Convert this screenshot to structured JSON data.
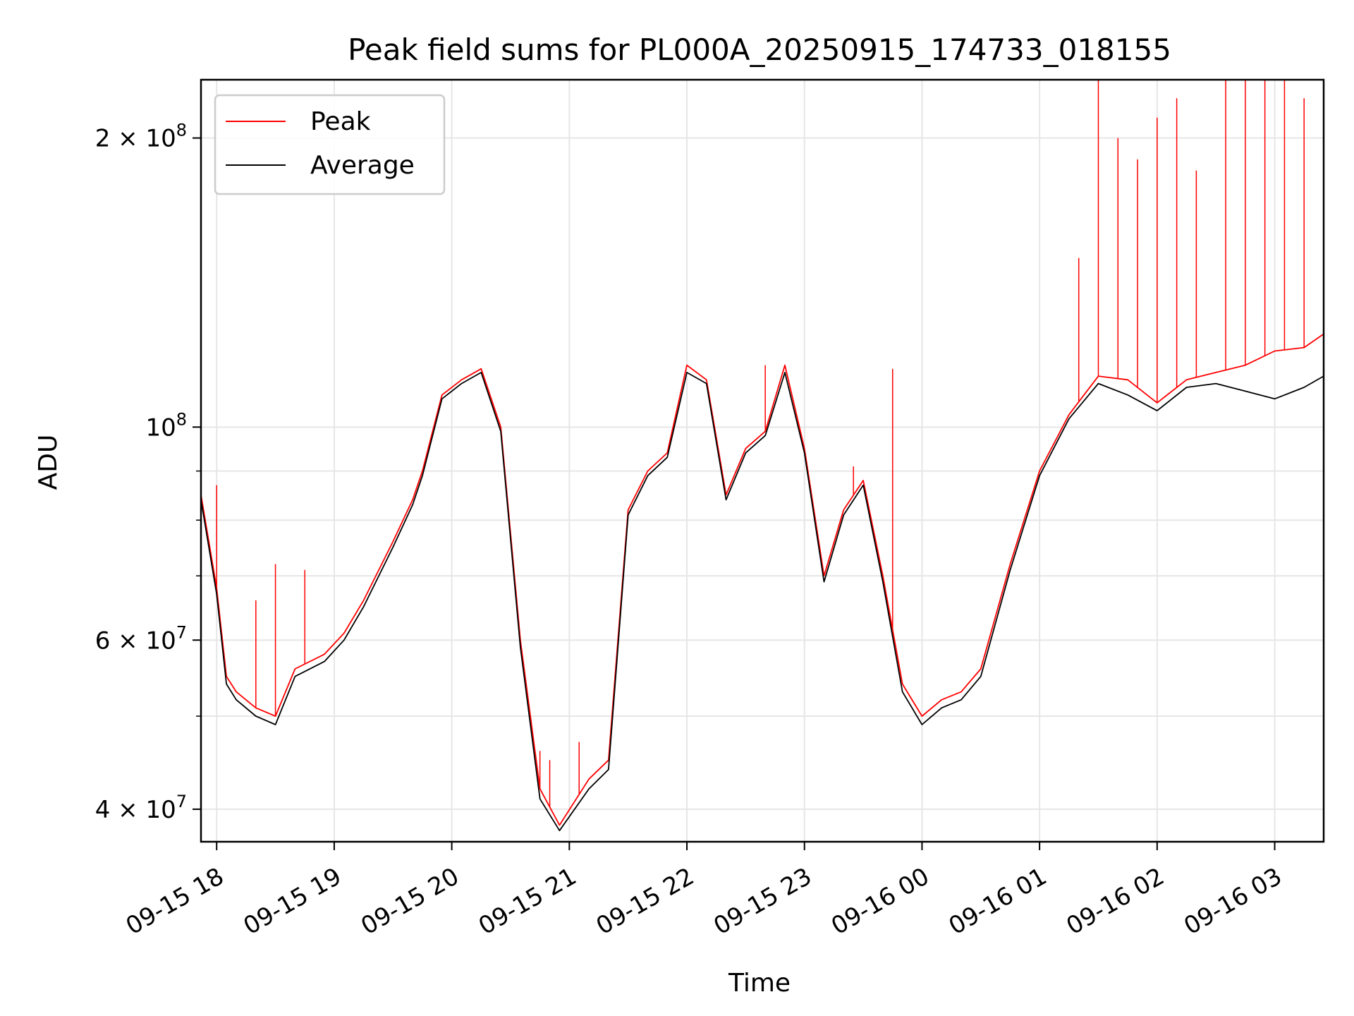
{
  "chart_data": {
    "type": "line",
    "title": "Peak field sums for PL000A_20250915_174733_018155",
    "xlabel": "Time",
    "ylabel": "ADU",
    "yscale": "log",
    "ylim": [
      37000000,
      230000000
    ],
    "xlim": [
      "2025-09-15 17:52",
      "2025-09-16 03:25"
    ],
    "x_ticks": [
      {
        "t": "2025-09-15 18:00",
        "label": "09-15 18"
      },
      {
        "t": "2025-09-15 19:00",
        "label": "09-15 19"
      },
      {
        "t": "2025-09-15 20:00",
        "label": "09-15 20"
      },
      {
        "t": "2025-09-15 21:00",
        "label": "09-15 21"
      },
      {
        "t": "2025-09-15 22:00",
        "label": "09-15 22"
      },
      {
        "t": "2025-09-15 23:00",
        "label": "09-15 23"
      },
      {
        "t": "2025-09-16 00:00",
        "label": "09-16 00"
      },
      {
        "t": "2025-09-16 01:00",
        "label": "09-16 01"
      },
      {
        "t": "2025-09-16 02:00",
        "label": "09-16 02"
      },
      {
        "t": "2025-09-16 03:00",
        "label": "09-16 03"
      }
    ],
    "y_major_ticks": [
      {
        "v": 40000000,
        "mant": "4",
        "exp": "7"
      },
      {
        "v": 60000000,
        "mant": "6",
        "exp": "7"
      },
      {
        "v": 100000000,
        "mant": "",
        "exp": "8"
      },
      {
        "v": 200000000,
        "mant": "2",
        "exp": "8"
      }
    ],
    "y_minor_ticks": [
      50000000,
      70000000,
      80000000,
      90000000
    ],
    "grid": true,
    "legend": {
      "placement": "upper-left"
    },
    "series": [
      {
        "name": "Peak",
        "color": "#ff0000",
        "x": [
          "2025-09-15 17:52",
          "2025-09-15 18:00",
          "2025-09-15 18:05",
          "2025-09-15 18:10",
          "2025-09-15 18:20",
          "2025-09-15 18:30",
          "2025-09-15 18:40",
          "2025-09-15 18:55",
          "2025-09-15 19:05",
          "2025-09-15 19:15",
          "2025-09-15 19:30",
          "2025-09-15 19:40",
          "2025-09-15 19:45",
          "2025-09-15 19:55",
          "2025-09-15 20:05",
          "2025-09-15 20:15",
          "2025-09-15 20:25",
          "2025-09-15 20:35",
          "2025-09-15 20:45",
          "2025-09-15 20:55",
          "2025-09-15 21:10",
          "2025-09-15 21:20",
          "2025-09-15 21:30",
          "2025-09-15 21:40",
          "2025-09-15 21:50",
          "2025-09-15 22:00",
          "2025-09-15 22:10",
          "2025-09-15 22:20",
          "2025-09-15 22:30",
          "2025-09-15 22:40",
          "2025-09-15 22:50",
          "2025-09-15 23:00",
          "2025-09-15 23:10",
          "2025-09-15 23:20",
          "2025-09-15 23:30",
          "2025-09-15 23:40",
          "2025-09-15 23:50",
          "2025-09-16 00:00",
          "2025-09-16 00:10",
          "2025-09-16 00:20",
          "2025-09-16 00:30",
          "2025-09-16 00:45",
          "2025-09-16 01:00",
          "2025-09-16 01:15",
          "2025-09-16 01:30",
          "2025-09-16 01:45",
          "2025-09-16 02:00",
          "2025-09-16 02:15",
          "2025-09-16 02:30",
          "2025-09-16 02:45",
          "2025-09-16 03:00",
          "2025-09-16 03:15",
          "2025-09-16 03:25"
        ],
        "values": [
          85000000,
          68000000,
          55000000,
          53000000,
          51000000,
          50000000,
          56000000,
          58000000,
          61000000,
          66000000,
          76000000,
          84000000,
          90000000,
          108000000,
          112000000,
          115000000,
          100000000,
          60000000,
          42000000,
          38500000,
          43000000,
          45000000,
          82000000,
          90000000,
          94000000,
          116000000,
          112000000,
          85000000,
          95000000,
          99000000,
          116000000,
          95000000,
          70000000,
          82000000,
          88000000,
          70000000,
          54000000,
          50000000,
          52000000,
          53000000,
          56000000,
          72000000,
          90000000,
          103000000,
          113000000,
          112000000,
          106000000,
          112000000,
          114000000,
          116000000,
          120000000,
          121000000,
          125000000
        ],
        "spikes": [
          {
            "t": "2025-09-15 18:00",
            "v": 87000000
          },
          {
            "t": "2025-09-15 18:20",
            "v": 66000000
          },
          {
            "t": "2025-09-15 18:30",
            "v": 72000000
          },
          {
            "t": "2025-09-15 18:45",
            "v": 71000000
          },
          {
            "t": "2025-09-15 20:45",
            "v": 46000000
          },
          {
            "t": "2025-09-15 20:50",
            "v": 45000000
          },
          {
            "t": "2025-09-15 21:05",
            "v": 47000000
          },
          {
            "t": "2025-09-15 22:40",
            "v": 116000000
          },
          {
            "t": "2025-09-15 23:25",
            "v": 91000000
          },
          {
            "t": "2025-09-15 23:45",
            "v": 115000000
          },
          {
            "t": "2025-09-16 01:20",
            "v": 150000000
          },
          {
            "t": "2025-09-16 01:30",
            "v": 230000000
          },
          {
            "t": "2025-09-16 01:40",
            "v": 200000000
          },
          {
            "t": "2025-09-16 01:50",
            "v": 190000000
          },
          {
            "t": "2025-09-16 02:00",
            "v": 210000000
          },
          {
            "t": "2025-09-16 02:10",
            "v": 220000000
          },
          {
            "t": "2025-09-16 02:20",
            "v": 185000000
          },
          {
            "t": "2025-09-16 02:35",
            "v": 230000000
          },
          {
            "t": "2025-09-16 02:45",
            "v": 230000000
          },
          {
            "t": "2025-09-16 02:55",
            "v": 230000000
          },
          {
            "t": "2025-09-16 03:05",
            "v": 230000000
          },
          {
            "t": "2025-09-16 03:15",
            "v": 220000000
          }
        ]
      },
      {
        "name": "Average",
        "color": "#000000",
        "x": [
          "2025-09-15 17:52",
          "2025-09-15 18:00",
          "2025-09-15 18:05",
          "2025-09-15 18:10",
          "2025-09-15 18:20",
          "2025-09-15 18:30",
          "2025-09-15 18:40",
          "2025-09-15 18:55",
          "2025-09-15 19:05",
          "2025-09-15 19:15",
          "2025-09-15 19:30",
          "2025-09-15 19:40",
          "2025-09-15 19:45",
          "2025-09-15 19:55",
          "2025-09-15 20:05",
          "2025-09-15 20:15",
          "2025-09-15 20:25",
          "2025-09-15 20:35",
          "2025-09-15 20:45",
          "2025-09-15 20:55",
          "2025-09-15 21:10",
          "2025-09-15 21:20",
          "2025-09-15 21:30",
          "2025-09-15 21:40",
          "2025-09-15 21:50",
          "2025-09-15 22:00",
          "2025-09-15 22:10",
          "2025-09-15 22:20",
          "2025-09-15 22:30",
          "2025-09-15 22:40",
          "2025-09-15 22:50",
          "2025-09-15 23:00",
          "2025-09-15 23:10",
          "2025-09-15 23:20",
          "2025-09-15 23:30",
          "2025-09-15 23:40",
          "2025-09-15 23:50",
          "2025-09-16 00:00",
          "2025-09-16 00:10",
          "2025-09-16 00:20",
          "2025-09-16 00:30",
          "2025-09-16 00:45",
          "2025-09-16 01:00",
          "2025-09-16 01:15",
          "2025-09-16 01:30",
          "2025-09-16 01:45",
          "2025-09-16 02:00",
          "2025-09-16 02:15",
          "2025-09-16 02:30",
          "2025-09-16 02:45",
          "2025-09-16 03:00",
          "2025-09-16 03:15",
          "2025-09-16 03:25"
        ],
        "values": [
          84000000,
          67000000,
          54000000,
          52000000,
          50000000,
          49000000,
          55000000,
          57000000,
          60000000,
          65000000,
          75000000,
          83000000,
          89000000,
          107000000,
          111000000,
          114000000,
          99000000,
          59000000,
          41000000,
          38000000,
          42000000,
          44000000,
          81000000,
          89000000,
          93000000,
          114000000,
          111000000,
          84000000,
          94000000,
          98000000,
          114000000,
          94000000,
          69000000,
          81000000,
          87000000,
          69000000,
          53000000,
          49000000,
          51000000,
          52000000,
          55000000,
          71000000,
          89000000,
          102000000,
          111000000,
          108000000,
          104000000,
          110000000,
          111000000,
          109000000,
          107000000,
          110000000,
          113000000
        ]
      }
    ]
  }
}
